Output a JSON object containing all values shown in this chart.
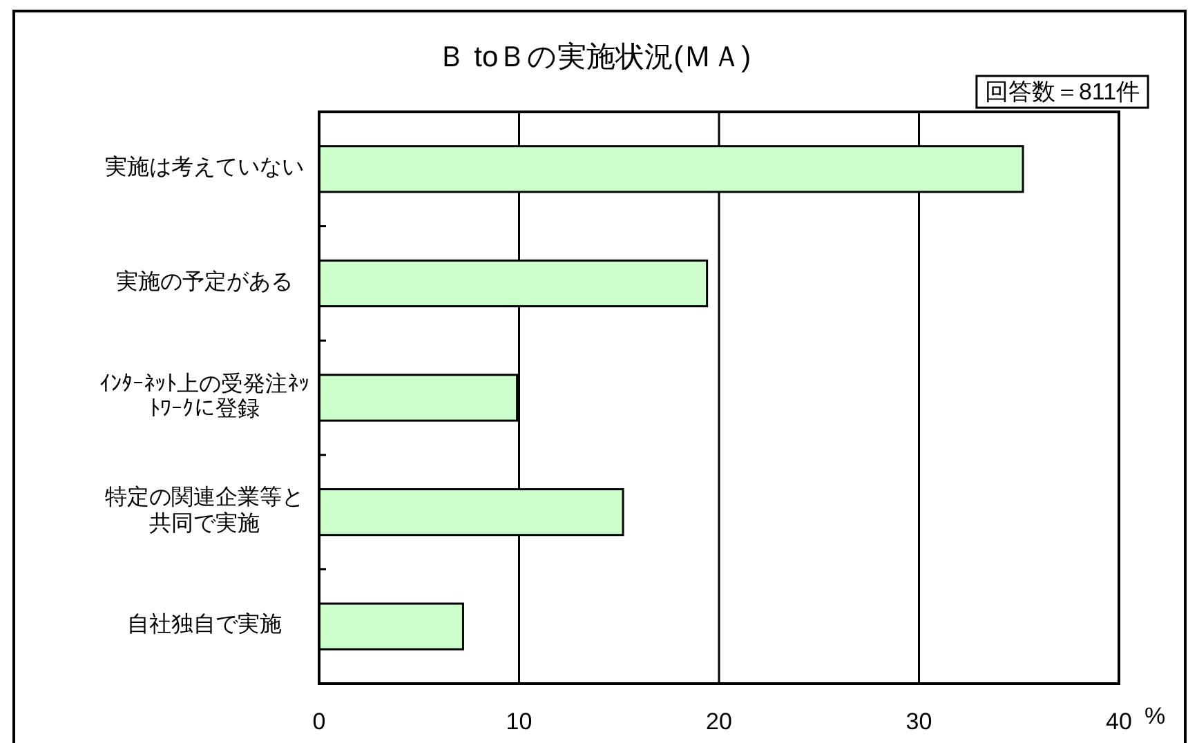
{
  "chart_data": {
    "type": "bar",
    "orientation": "horizontal",
    "title": "Ｂ toＢの実施状況(ＭＡ)",
    "xlabel": "%",
    "annotations": [
      "回答数＝811件"
    ],
    "categories": [
      "実施は考えていない",
      "実施の予定がある",
      "ｲﾝﾀｰﾈｯﾄ上の受発注ﾈｯﾄﾜｰｸに登録",
      "特定の関連企業等と共同で実施",
      "自社独自で実施"
    ],
    "values": [
      35.2,
      19.4,
      9.9,
      15.2,
      7.2
    ],
    "color": "#ccffcc",
    "xlim": [
      0,
      40
    ],
    "xticks": [
      0,
      10,
      20,
      30,
      40
    ],
    "grid": "x"
  }
}
